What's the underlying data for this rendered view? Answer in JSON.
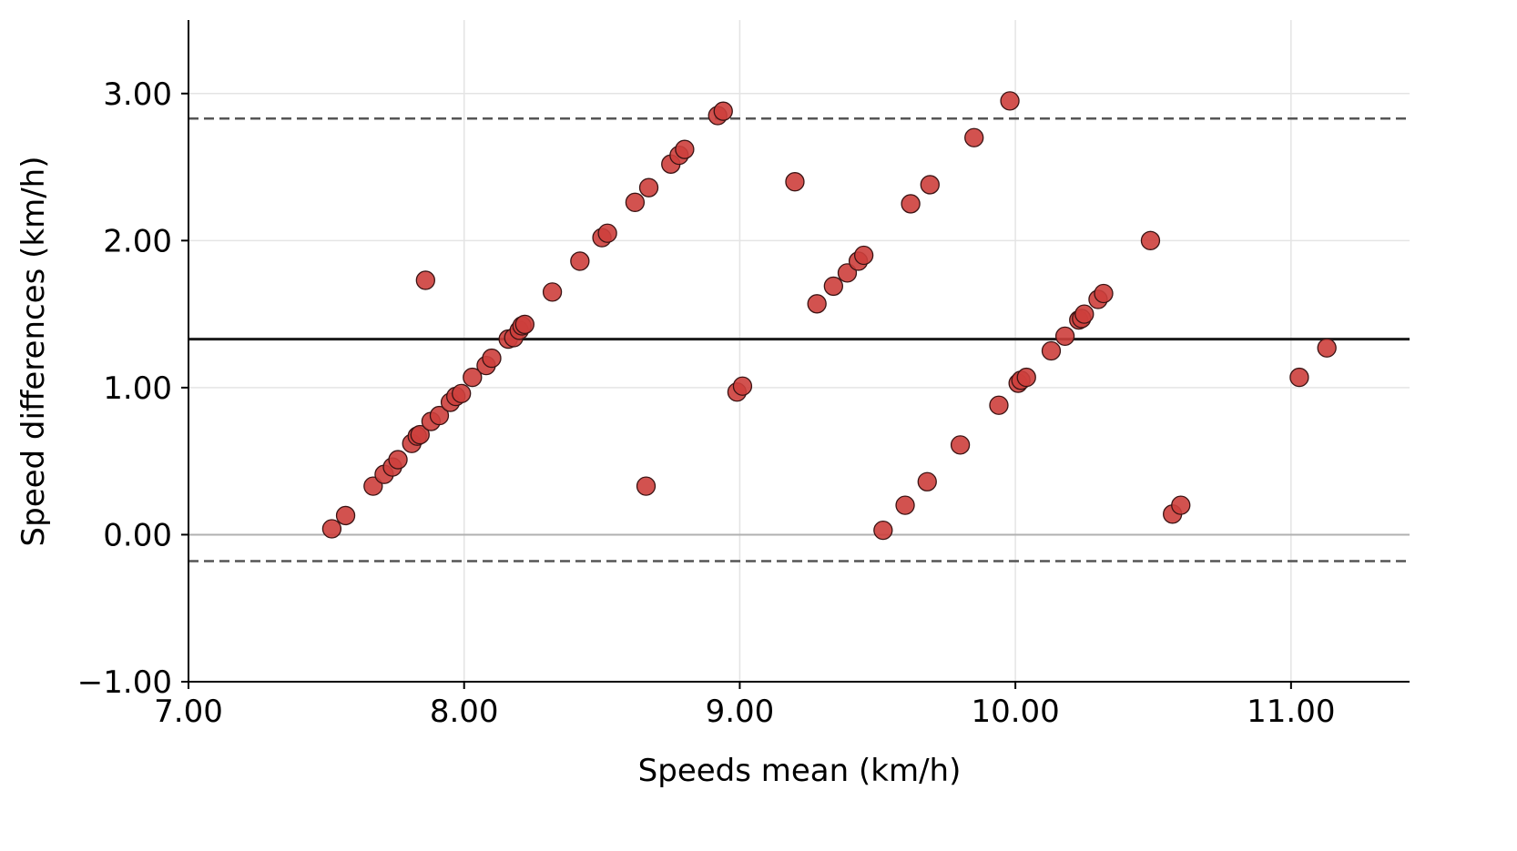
{
  "chart_data": {
    "type": "scatter",
    "title": "",
    "xlabel": "Speeds mean (km/h)",
    "ylabel": "Speed differences (km/h)",
    "xlim": [
      7.0,
      11.43
    ],
    "ylim": [
      -1.0,
      3.5
    ],
    "x_ticks": [
      7.0,
      8.0,
      9.0,
      10.0,
      11.0
    ],
    "x_tick_labels": [
      "7.00",
      "8.00",
      "9.00",
      "10.00",
      "11.00"
    ],
    "y_ticks": [
      -1.0,
      0.0,
      1.0,
      2.0,
      3.0
    ],
    "y_tick_labels": [
      "−1.00",
      "0.00",
      "1.00",
      "2.00",
      "3.00"
    ],
    "grid": true,
    "reference_lines": [
      {
        "y": 1.33,
        "style": "solid",
        "color": "#1a1a1a"
      },
      {
        "y": 2.83,
        "style": "dashed",
        "color": "#555555"
      },
      {
        "y": -0.18,
        "style": "dashed",
        "color": "#555555"
      },
      {
        "y": 0.0,
        "style": "solid",
        "color": "#b0b0b0"
      }
    ],
    "marker_color": "#cd3f3c",
    "marker_edge": "#3a1414",
    "points": [
      [
        7.52,
        0.04
      ],
      [
        7.57,
        0.13
      ],
      [
        7.67,
        0.33
      ],
      [
        7.71,
        0.41
      ],
      [
        7.74,
        0.46
      ],
      [
        7.76,
        0.51
      ],
      [
        7.81,
        0.62
      ],
      [
        7.83,
        0.67
      ],
      [
        7.84,
        0.68
      ],
      [
        7.86,
        1.73
      ],
      [
        7.88,
        0.77
      ],
      [
        7.91,
        0.81
      ],
      [
        7.95,
        0.9
      ],
      [
        7.97,
        0.94
      ],
      [
        7.99,
        0.96
      ],
      [
        8.03,
        1.07
      ],
      [
        8.08,
        1.15
      ],
      [
        8.1,
        1.2
      ],
      [
        8.16,
        1.33
      ],
      [
        8.18,
        1.34
      ],
      [
        8.2,
        1.39
      ],
      [
        8.21,
        1.42
      ],
      [
        8.22,
        1.43
      ],
      [
        8.32,
        1.65
      ],
      [
        8.42,
        1.86
      ],
      [
        8.5,
        2.02
      ],
      [
        8.52,
        2.05
      ],
      [
        8.62,
        2.26
      ],
      [
        8.66,
        0.33
      ],
      [
        8.67,
        2.36
      ],
      [
        8.75,
        2.52
      ],
      [
        8.78,
        2.58
      ],
      [
        8.8,
        2.62
      ],
      [
        8.92,
        2.85
      ],
      [
        8.94,
        2.88
      ],
      [
        8.99,
        0.97
      ],
      [
        9.01,
        1.01
      ],
      [
        9.2,
        2.4
      ],
      [
        9.28,
        1.57
      ],
      [
        9.34,
        1.69
      ],
      [
        9.39,
        1.78
      ],
      [
        9.43,
        1.86
      ],
      [
        9.45,
        1.9
      ],
      [
        9.52,
        0.03
      ],
      [
        9.6,
        0.2
      ],
      [
        9.62,
        2.25
      ],
      [
        9.68,
        0.36
      ],
      [
        9.69,
        2.38
      ],
      [
        9.8,
        0.61
      ],
      [
        9.85,
        2.7
      ],
      [
        9.94,
        0.88
      ],
      [
        9.98,
        2.95
      ],
      [
        10.01,
        1.03
      ],
      [
        10.02,
        1.05
      ],
      [
        10.04,
        1.07
      ],
      [
        10.13,
        1.25
      ],
      [
        10.18,
        1.35
      ],
      [
        10.23,
        1.46
      ],
      [
        10.24,
        1.47
      ],
      [
        10.25,
        1.5
      ],
      [
        10.3,
        1.6
      ],
      [
        10.32,
        1.64
      ],
      [
        10.49,
        2.0
      ],
      [
        10.57,
        0.14
      ],
      [
        10.6,
        0.2
      ],
      [
        11.03,
        1.07
      ],
      [
        11.13,
        1.27
      ]
    ]
  }
}
